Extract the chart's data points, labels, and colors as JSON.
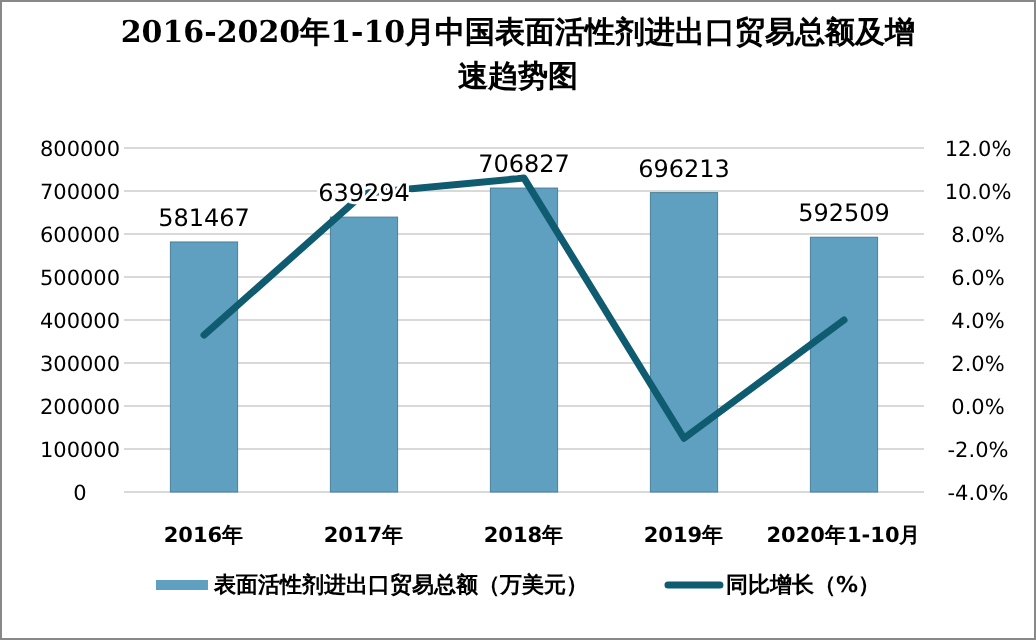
{
  "chart_data": {
    "type": "bar",
    "title": "2016-2020年1-10月中国表面活性剂进出口贸易总额及增速趋势图",
    "categories": [
      "2016年",
      "2017年",
      "2018年",
      "2019年",
      "2020年1-10月"
    ],
    "series": [
      {
        "name": "表面活性剂进出口贸易总额（万美元）",
        "color": "#5f9fc0",
        "values": [
          581467,
          639294,
          706827,
          696213,
          592509
        ],
        "value_labels": [
          "581467",
          "639294",
          "706827",
          "696213",
          "592509"
        ]
      },
      {
        "name": "同比增长（%）",
        "type": "line",
        "axis": "y2",
        "color": "#0f5b70",
        "values": [
          3.3,
          9.9,
          10.6,
          -1.5,
          4.0
        ]
      }
    ],
    "ylim": [
      0,
      800000
    ],
    "yticks": [
      0,
      100000,
      200000,
      300000,
      400000,
      500000,
      600000,
      700000,
      800000
    ],
    "y2lim": [
      -4,
      12
    ],
    "y2ticks": [
      {
        "value": -4,
        "label": "-4.0%"
      },
      {
        "value": -2,
        "label": "-2.0%"
      },
      {
        "value": 0,
        "label": "0.0%"
      },
      {
        "value": 2,
        "label": "2.0%"
      },
      {
        "value": 4,
        "label": "4.0%"
      },
      {
        "value": 6,
        "label": "6.0%"
      },
      {
        "value": 8,
        "label": "8.0%"
      },
      {
        "value": 10,
        "label": "10.0%"
      },
      {
        "value": 12,
        "label": "12.0%"
      }
    ],
    "grid": "y",
    "legend": "bottom",
    "marker": "none",
    "line_style": "solid"
  }
}
